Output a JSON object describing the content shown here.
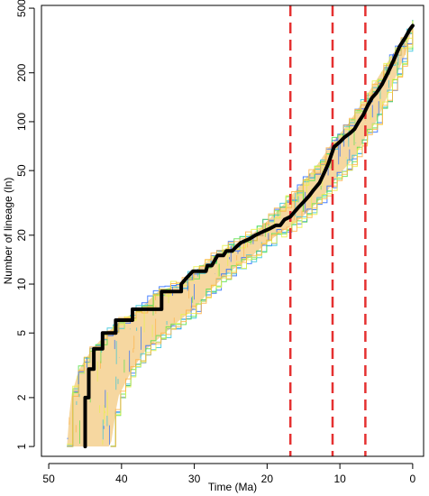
{
  "chart_data": {
    "type": "line",
    "title": "",
    "xlabel": "Time (Ma)",
    "ylabel": "Number of lineage (ln)",
    "x_reversed": true,
    "xlim": [
      51,
      -1.5
    ],
    "ylim": [
      0.87,
      520
    ],
    "y_scale": "log",
    "xticks": [
      50,
      40,
      30,
      20,
      10,
      0
    ],
    "yticks": [
      1,
      2,
      5,
      10,
      20,
      50,
      100,
      200,
      500
    ],
    "colors": {
      "main_line": "#000000",
      "envelope_fill": "#f6d7a0",
      "envelope_edges": [
        "#2b6cff",
        "#36c6d9",
        "#5ce04a",
        "#e7f24a",
        "#ffb347"
      ],
      "reference_lines": "#e53030",
      "axes": "#000000"
    },
    "main_series": {
      "x": [
        45.0,
        45.0,
        44.5,
        44.5,
        43.8,
        43.8,
        42.6,
        42.6,
        40.8,
        40.8,
        38.5,
        38.5,
        34.5,
        34.5,
        31.8,
        31.8,
        31.0,
        30.2,
        29.5,
        28.4,
        28.2,
        27.6,
        26.8,
        26.0,
        25.6,
        24.8,
        24.2,
        23.6,
        22.4,
        21.6,
        20.6,
        19.6,
        18.8,
        18.2,
        17.6,
        16.8,
        16.2,
        15.6,
        15.0,
        14.2,
        13.6,
        12.8,
        12.2,
        11.6,
        11.2,
        10.8,
        10.0,
        9.4,
        8.6,
        8.0,
        7.4,
        6.8,
        6.2,
        5.6,
        5.0,
        4.2,
        3.4,
        2.6,
        1.8,
        1.0,
        0.4,
        0.0
      ],
      "y": [
        1,
        2,
        2,
        3,
        3,
        4,
        4,
        5,
        5,
        6,
        6,
        7,
        7,
        9,
        9,
        10,
        11,
        12,
        12,
        12,
        13,
        13,
        15,
        15,
        16,
        16,
        17,
        18,
        19,
        20,
        21,
        22,
        23,
        23,
        25,
        26,
        28,
        30,
        32,
        35,
        38,
        42,
        48,
        55,
        62,
        70,
        75,
        80,
        85,
        90,
        100,
        110,
        125,
        140,
        150,
        170,
        200,
        240,
        290,
        330,
        370,
        390
      ]
    },
    "envelope_low": {
      "x": [
        41.5,
        40.5,
        38.5,
        36.5,
        34.0,
        32.0,
        30.0,
        28.0,
        26.0,
        24.0,
        22.0,
        20.0,
        18.0,
        16.0,
        14.0,
        12.0,
        10.0,
        8.0,
        6.5,
        5.0,
        3.0,
        1.0,
        0.0
      ],
      "y": [
        1,
        2,
        3,
        4,
        5,
        6,
        7,
        9,
        11,
        13,
        15,
        18,
        21,
        24,
        29,
        36,
        48,
        60,
        80,
        100,
        160,
        260,
        390
      ]
    },
    "envelope_high": {
      "x": [
        47.5,
        47.0,
        45.8,
        44.0,
        42.0,
        40.0,
        37.5,
        35.0,
        32.0,
        29.0,
        26.5,
        24.0,
        21.0,
        18.0,
        16.0,
        13.0,
        11.0,
        9.0,
        7.0,
        5.0,
        3.0,
        1.0,
        0.0
      ],
      "y": [
        1,
        2,
        3,
        4,
        5,
        6,
        7,
        9,
        10,
        13,
        16,
        18,
        22,
        30,
        38,
        55,
        75,
        95,
        130,
        180,
        250,
        340,
        390
      ]
    },
    "reference_lines_x": [
      16.8,
      11.0,
      6.5
    ]
  }
}
